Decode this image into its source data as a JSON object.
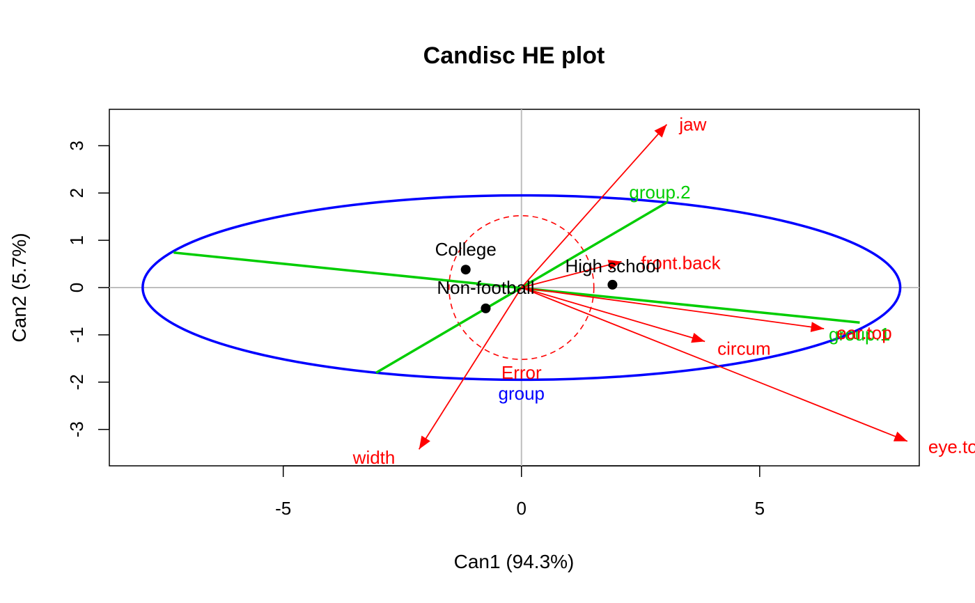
{
  "chart_data": {
    "type": "scatter",
    "title": "Candisc HE plot",
    "xlabel": "Can1 (94.3%)",
    "ylabel": "Can2 (5.7%)",
    "xlim": [
      -8.65,
      8.35
    ],
    "ylim": [
      -3.77,
      3.77
    ],
    "x_ticks": [
      -5,
      0,
      5
    ],
    "y_ticks": [
      -3,
      -2,
      -1,
      0,
      1,
      2,
      3
    ],
    "x_tick_labels": [
      "-5",
      "0",
      "5"
    ],
    "y_tick_labels": [
      "-3",
      "-2",
      "-1",
      "0",
      "1",
      "2",
      "3"
    ],
    "reference_lines": {
      "x": 0,
      "y": 0,
      "color": "#bebebe"
    },
    "grid": false,
    "colors": {
      "group": "#0000ff",
      "error": "#ff0000",
      "contrast": "#00cd00",
      "vectors": "#ff0000",
      "points": "#000000",
      "reference": "#bebebe"
    },
    "points": [
      {
        "label": "College",
        "x": -1.17,
        "y": 0.38
      },
      {
        "label": "High school",
        "x": 1.91,
        "y": 0.06
      },
      {
        "label": "Non-football",
        "x": -0.75,
        "y": -0.44
      }
    ],
    "vectors": [
      {
        "label": "jaw",
        "x": 3.05,
        "y": 3.45
      },
      {
        "label": "front.back",
        "x": 2.1,
        "y": 0.55
      },
      {
        "label": "ear.top",
        "x": 6.35,
        "y": -0.87
      },
      {
        "label": "circum",
        "x": 3.85,
        "y": -1.14
      },
      {
        "label": "eye.top",
        "x": 8.1,
        "y": -3.25
      },
      {
        "label": "width",
        "x": -2.15,
        "y": -3.42
      }
    ],
    "ellipses": [
      {
        "label": "group",
        "type": "H",
        "center": [
          0,
          0
        ],
        "semi_x": 7.95,
        "semi_y": 1.95,
        "color": "#0000ff"
      },
      {
        "label": "Error",
        "type": "E",
        "center": [
          0,
          0
        ],
        "semi_x": 1.52,
        "semi_y": 1.52,
        "color": "#ff0000",
        "dashed": true
      }
    ],
    "contrasts": [
      {
        "label": "group.1",
        "from": [
          -7.3,
          0.74
        ],
        "to": [
          7.1,
          -0.74
        ],
        "color": "#00cd00"
      },
      {
        "label": "group.2",
        "from": [
          -3.05,
          -1.8
        ],
        "to": [
          3.05,
          1.8
        ],
        "color": "#00cd00"
      }
    ]
  }
}
